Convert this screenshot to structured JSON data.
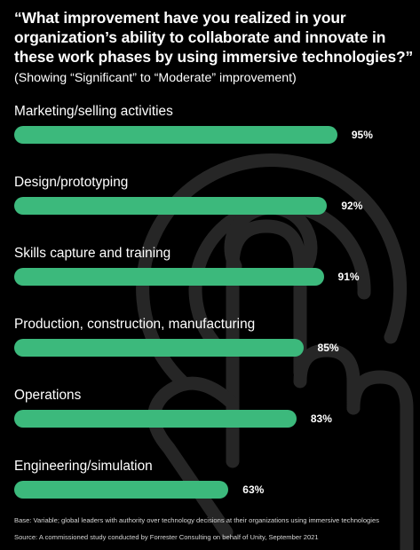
{
  "title": "“What improvement have you realized in your organization’s ability to collaborate and innovate in these work phases by using immersive technologies?”",
  "subtitle": "(Showing “Significant” to “Moderate” improvement)",
  "footnote_base": "Base: Variable; global leaders with authority over technology decisions at their organizations using immersive technologies",
  "footnote_source": "Source: A commissioned study conducted by Forrester Consulting on behalf of Unity, September 2021",
  "colors": {
    "background": "#000000",
    "bar": "#3cb97c",
    "text": "#ffffff",
    "background_art": "#2b2b2b"
  },
  "background_art_icon": "hand-pointer-icon",
  "chart_data": {
    "type": "bar",
    "orientation": "horizontal",
    "categories": [
      "Marketing/selling activities",
      "Design/prototyping",
      "Skills capture and training",
      "Production, construction, manufacturing",
      "Operations",
      "Engineering/simulation"
    ],
    "values": [
      95,
      92,
      91,
      85,
      83,
      63
    ],
    "value_labels": [
      "95%",
      "92%",
      "91%",
      "85%",
      "83%",
      "63%"
    ],
    "xlim": [
      0,
      100
    ],
    "grid": false,
    "legend": "none"
  }
}
